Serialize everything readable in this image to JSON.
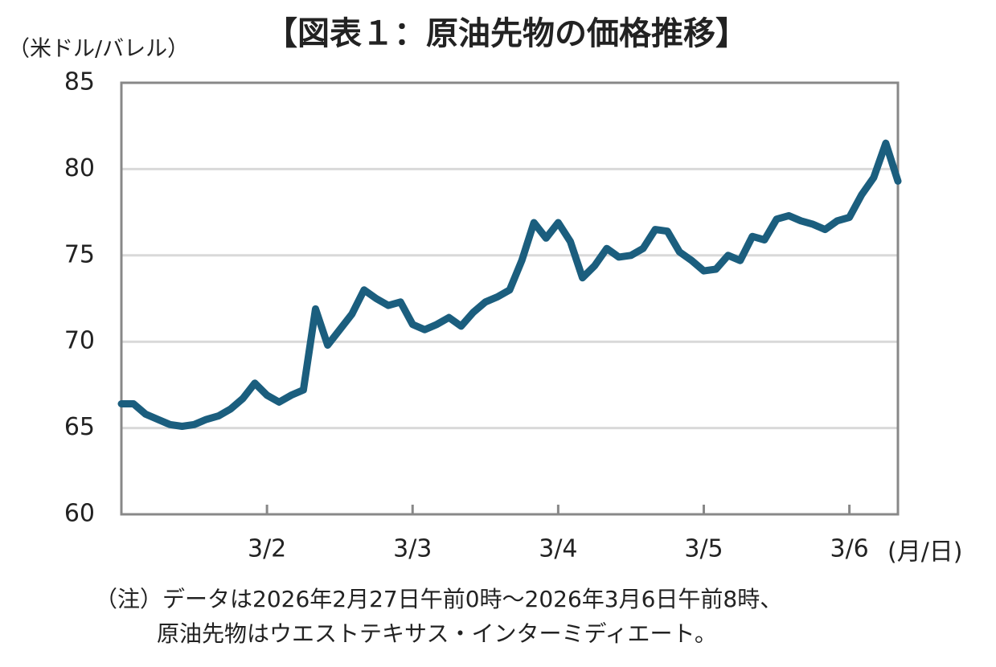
{
  "chart_data": {
    "type": "line",
    "title": "【図表１：原油先物の価格推移】",
    "y_label": "（米ドル/バレル）",
    "x_label": "(月/日)",
    "note": [
      "（注）データは2026年2月27日午前0時～2026年3月6日午前8時、",
      "原油先物はウエストテキサス・インターミディエート。"
    ],
    "categories": [
      null,
      null,
      null,
      null,
      null,
      null,
      null,
      null,
      null,
      null,
      null,
      null,
      "3/2",
      null,
      null,
      null,
      null,
      null,
      null,
      null,
      null,
      null,
      null,
      null,
      "3/3",
      null,
      null,
      null,
      null,
      null,
      null,
      null,
      null,
      null,
      null,
      null,
      "3/4",
      null,
      null,
      null,
      null,
      null,
      null,
      null,
      null,
      null,
      null,
      null,
      "3/5",
      null,
      null,
      null,
      null,
      null,
      null,
      null,
      null,
      null,
      null,
      null,
      "3/6",
      null,
      null,
      null,
      null
    ],
    "values": [
      66.4,
      66.4,
      65.8,
      65.5,
      65.2,
      65.1,
      65.2,
      65.5,
      65.7,
      66.1,
      66.7,
      67.6,
      66.9,
      66.5,
      66.9,
      67.2,
      71.9,
      69.8,
      70.7,
      71.6,
      73.0,
      72.5,
      72.1,
      72.3,
      71.0,
      70.7,
      71.0,
      71.4,
      70.9,
      71.7,
      72.3,
      72.6,
      73.0,
      74.7,
      76.9,
      76.0,
      76.9,
      75.8,
      73.7,
      74.4,
      75.4,
      74.9,
      75.0,
      75.4,
      76.5,
      76.4,
      75.2,
      74.7,
      74.1,
      74.2,
      75.0,
      74.7,
      76.1,
      75.9,
      77.1,
      77.3,
      77.0,
      76.8,
      76.5,
      77.0,
      77.2,
      78.5,
      79.5,
      81.5,
      79.3
    ],
    "color": "#1b5e7e",
    "ylim": [
      60,
      85
    ],
    "yticks": [
      60,
      65,
      70,
      75,
      80,
      85
    ],
    "grid": true
  }
}
